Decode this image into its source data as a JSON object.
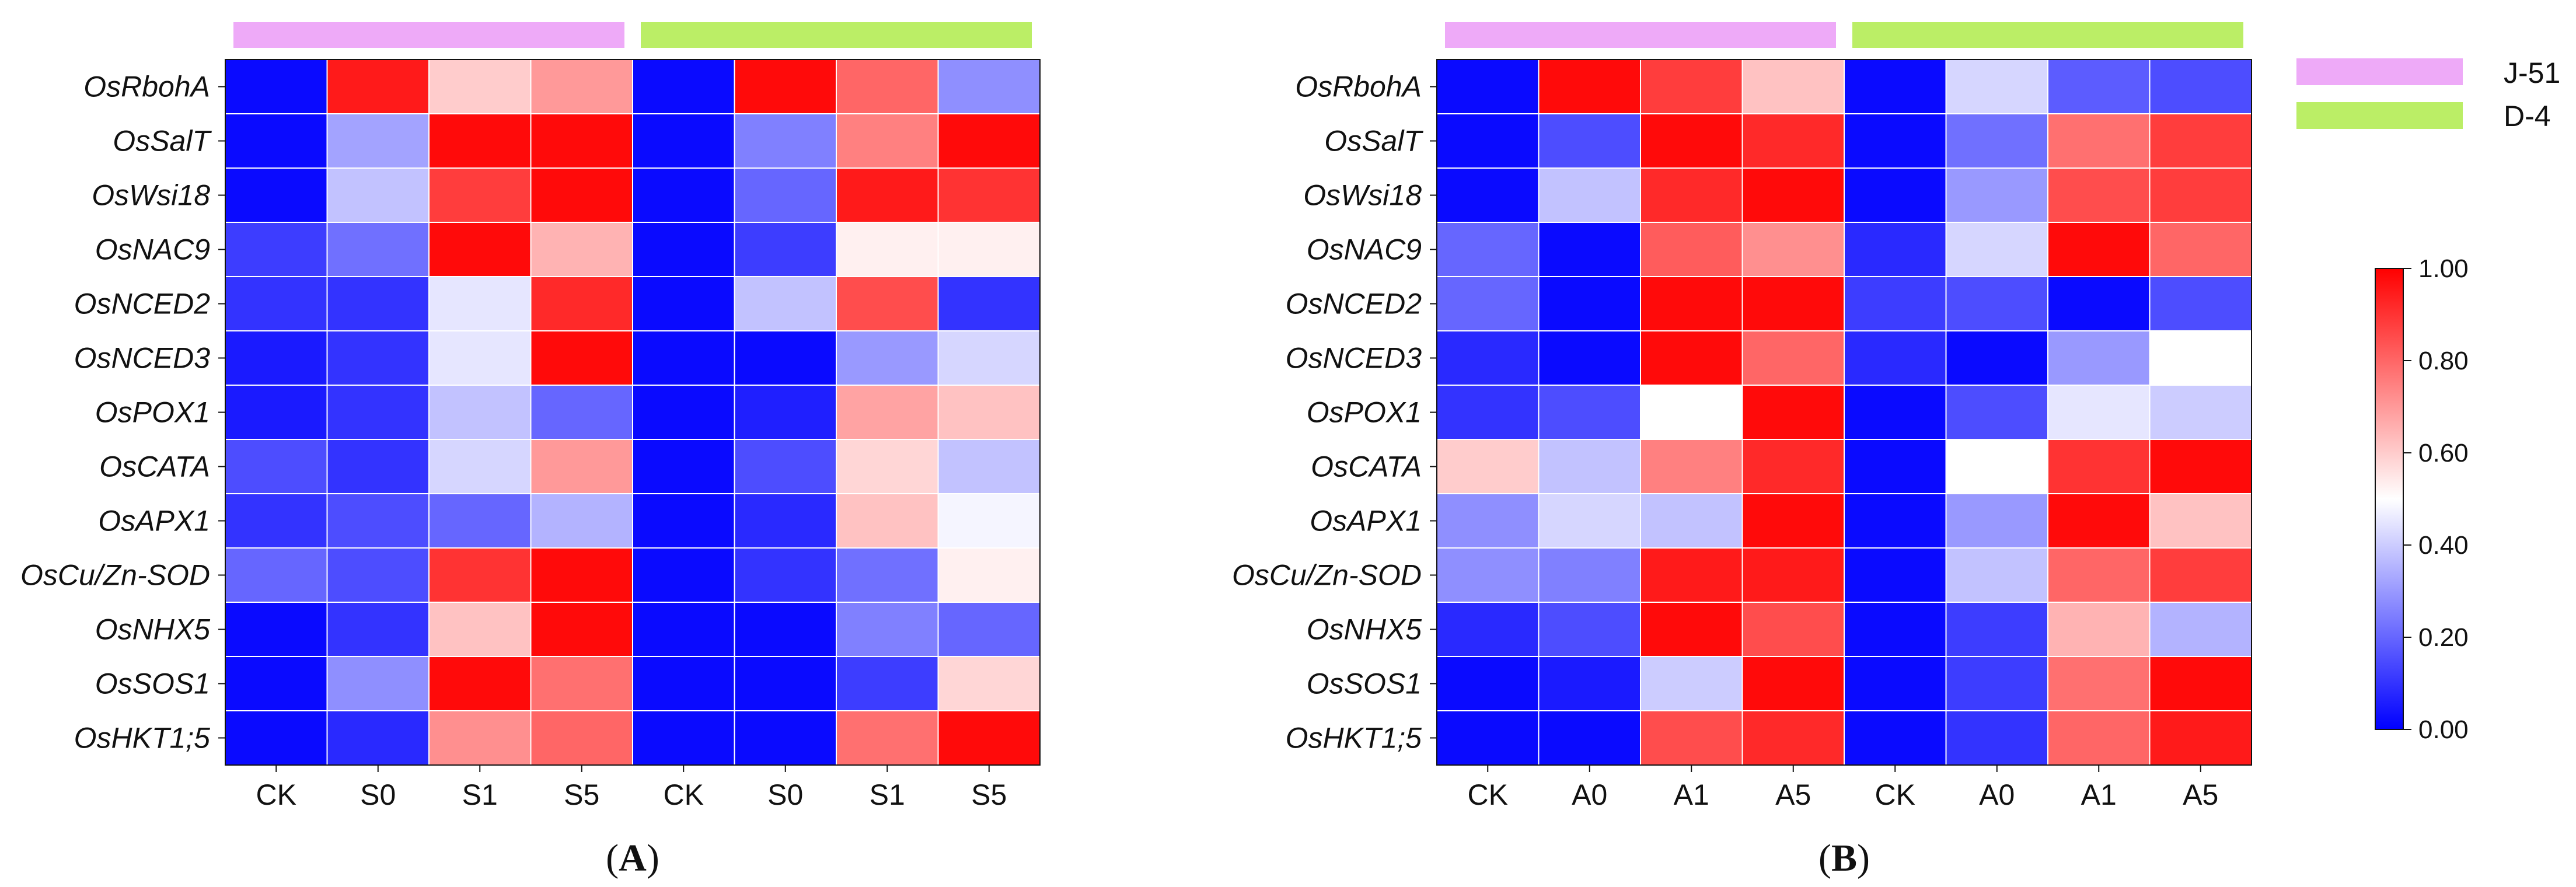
{
  "colors": {
    "low": "#0000ff",
    "mid": "#ffffff",
    "high": "#ff0000",
    "group_j51": "#eeaaf8",
    "group_d4": "#bbee66"
  },
  "legend": {
    "groups": [
      {
        "name": "J-51",
        "color": "#eeaaf8"
      },
      {
        "name": "D-4",
        "color": "#bbee66"
      }
    ]
  },
  "colorbar": {
    "min": 0,
    "max": 1,
    "ticks": [
      "0.00",
      "0.20",
      "0.40",
      "0.60",
      "0.80",
      "1.00"
    ]
  },
  "chart_data": [
    {
      "type": "heatmap",
      "panel": "A",
      "panel_label_open": "(",
      "panel_label_letter": "A",
      "panel_label_close": ")",
      "groups": [
        "J-51",
        "D-4"
      ],
      "columns": [
        "CK",
        "S0",
        "S1",
        "S5",
        "CK",
        "S0",
        "S1",
        "S5"
      ],
      "rows": [
        "OsRbohA",
        "OsSalT",
        "OsWsi18",
        "OsNAC9",
        "OsNCED2",
        "OsNCED3",
        "OsPOX1",
        "OsCATA",
        "OsAPX1",
        "OsCu/Zn-SOD",
        "OsNHX5",
        "OsSOS1",
        "OsHKT1;5"
      ],
      "values": [
        [
          0.02,
          0.95,
          0.6,
          0.7,
          0.02,
          0.98,
          0.8,
          0.28
        ],
        [
          0.02,
          0.32,
          0.98,
          0.98,
          0.02,
          0.25,
          0.75,
          0.98
        ],
        [
          0.02,
          0.38,
          0.88,
          0.98,
          0.02,
          0.2,
          0.95,
          0.9
        ],
        [
          0.12,
          0.22,
          0.98,
          0.65,
          0.02,
          0.12,
          0.53,
          0.53
        ],
        [
          0.1,
          0.1,
          0.45,
          0.92,
          0.02,
          0.38,
          0.85,
          0.1
        ],
        [
          0.05,
          0.1,
          0.45,
          0.98,
          0.02,
          0.02,
          0.3,
          0.42
        ],
        [
          0.05,
          0.1,
          0.38,
          0.2,
          0.02,
          0.06,
          0.68,
          0.62
        ],
        [
          0.15,
          0.1,
          0.42,
          0.7,
          0.02,
          0.15,
          0.58,
          0.38
        ],
        [
          0.1,
          0.15,
          0.2,
          0.35,
          0.02,
          0.08,
          0.62,
          0.48
        ],
        [
          0.2,
          0.15,
          0.9,
          0.98,
          0.02,
          0.1,
          0.22,
          0.53
        ],
        [
          0.02,
          0.1,
          0.62,
          0.98,
          0.02,
          0.02,
          0.25,
          0.2
        ],
        [
          0.02,
          0.28,
          0.98,
          0.78,
          0.02,
          0.02,
          0.12,
          0.58
        ],
        [
          0.02,
          0.08,
          0.72,
          0.8,
          0.02,
          0.02,
          0.78,
          0.98
        ]
      ]
    },
    {
      "type": "heatmap",
      "panel": "B",
      "panel_label_open": "(",
      "panel_label_letter": "B",
      "panel_label_close": ")",
      "groups": [
        "J-51",
        "D-4"
      ],
      "columns": [
        "CK",
        "A0",
        "A1",
        "A5",
        "CK",
        "A0",
        "A1",
        "A5"
      ],
      "rows": [
        "OsRbohA",
        "OsSalT",
        "OsWsi18",
        "OsNAC9",
        "OsNCED2",
        "OsNCED3",
        "OsPOX1",
        "OsCATA",
        "OsAPX1",
        "OsCu/Zn-SOD",
        "OsNHX5",
        "OsSOS1",
        "OsHKT1;5"
      ],
      "values": [
        [
          0.02,
          0.98,
          0.88,
          0.62,
          0.02,
          0.42,
          0.18,
          0.15
        ],
        [
          0.02,
          0.15,
          0.98,
          0.92,
          0.02,
          0.22,
          0.78,
          0.88
        ],
        [
          0.02,
          0.38,
          0.92,
          0.98,
          0.02,
          0.3,
          0.85,
          0.88
        ],
        [
          0.2,
          0.02,
          0.82,
          0.72,
          0.08,
          0.42,
          0.98,
          0.8
        ],
        [
          0.2,
          0.02,
          0.98,
          0.98,
          0.12,
          0.15,
          0.02,
          0.15
        ],
        [
          0.08,
          0.02,
          0.98,
          0.8,
          0.08,
          0.02,
          0.3,
          0.5
        ],
        [
          0.1,
          0.15,
          0.5,
          0.98,
          0.02,
          0.15,
          0.45,
          0.4
        ],
        [
          0.6,
          0.38,
          0.75,
          0.92,
          0.02,
          0.5,
          0.9,
          0.98
        ],
        [
          0.28,
          0.42,
          0.38,
          0.98,
          0.02,
          0.3,
          0.98,
          0.62
        ],
        [
          0.28,
          0.25,
          0.95,
          0.95,
          0.02,
          0.38,
          0.8,
          0.88
        ],
        [
          0.08,
          0.15,
          0.98,
          0.85,
          0.02,
          0.12,
          0.65,
          0.35
        ],
        [
          0.02,
          0.05,
          0.4,
          0.98,
          0.02,
          0.12,
          0.78,
          0.98
        ],
        [
          0.02,
          0.02,
          0.85,
          0.92,
          0.02,
          0.1,
          0.8,
          0.95
        ]
      ]
    }
  ]
}
